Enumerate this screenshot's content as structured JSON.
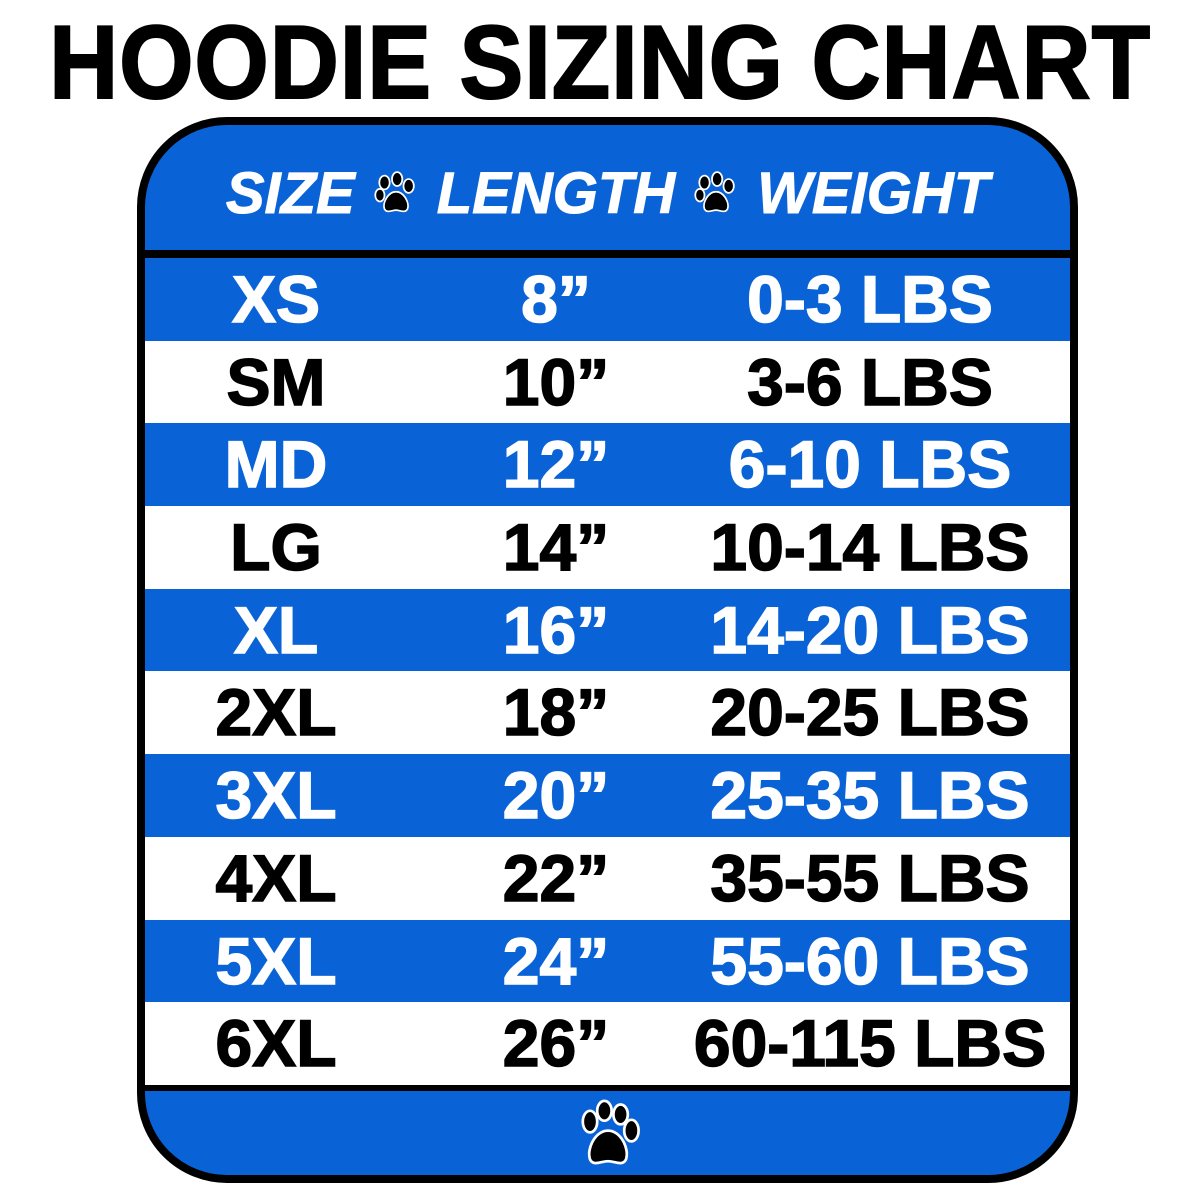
{
  "title": "HOODIE SIZING CHART",
  "colors": {
    "accent_blue": "#0a63d6",
    "border": "#000000"
  },
  "header": {
    "col1": "SIZE",
    "col2": "LENGTH",
    "col3": "WEIGHT",
    "separator_icon": "paw-icon"
  },
  "rows": [
    {
      "size": "XS",
      "length": "8”",
      "weight": "0-3 LBS"
    },
    {
      "size": "SM",
      "length": "10”",
      "weight": "3-6 LBS"
    },
    {
      "size": "MD",
      "length": "12”",
      "weight": "6-10 LBS"
    },
    {
      "size": "LG",
      "length": "14”",
      "weight": "10-14 LBS"
    },
    {
      "size": "XL",
      "length": "16”",
      "weight": "14-20 LBS"
    },
    {
      "size": "2XL",
      "length": "18”",
      "weight": "20-25 LBS"
    },
    {
      "size": "3XL",
      "length": "20”",
      "weight": "25-35 LBS"
    },
    {
      "size": "4XL",
      "length": "22”",
      "weight": "35-55 LBS"
    },
    {
      "size": "5XL",
      "length": "24”",
      "weight": "55-60 LBS"
    },
    {
      "size": "6XL",
      "length": "26”",
      "weight": "60-115 LBS"
    }
  ],
  "footer": {
    "icon": "paw-icon"
  }
}
